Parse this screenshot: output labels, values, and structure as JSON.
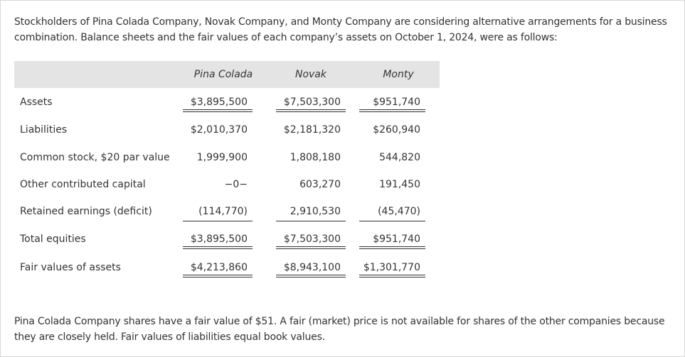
{
  "intro": "Stockholders of Pina Colada Company, Novak Company, and Monty Company are considering alternative arrangements for a business combination. Balance sheets and the fair values of each company’s assets on October 1, 2024, were as follows:",
  "table": {
    "headers": [
      "Pina Colada",
      "Novak",
      "Monty"
    ],
    "rows": [
      [
        "Assets",
        "$3,895,500",
        "$7,503,300",
        "$951,740"
      ],
      [
        "Liabilities",
        "$2,010,370",
        "$2,181,320",
        "$260,940"
      ],
      [
        "Common stock, $20 par value",
        "1,999,900",
        "1,808,180",
        "544,820"
      ],
      [
        "Other contributed capital",
        "−0−",
        "603,270",
        "191,450"
      ],
      [
        "Retained earnings (deficit)",
        "(114,770)",
        "2,910,530",
        "(45,470)"
      ],
      [
        "Total equities",
        "$3,895,500",
        "$7,503,300",
        "$951,740"
      ],
      [
        "Fair values of assets",
        "$4,213,860",
        "$8,943,100",
        "$1,301,770"
      ]
    ]
  },
  "footer": "Pina Colada Company shares have a fair value of $51. A fair (market) price is not available for shares of the other companies because they are closely held. Fair values of liabilities equal book values."
}
